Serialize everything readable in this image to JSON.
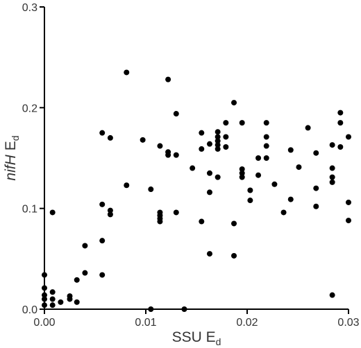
{
  "chart_data": {
    "type": "scatter",
    "xlabel": {
      "text": "SSU E",
      "subscript": "d"
    },
    "ylabel": {
      "italic": "nifH",
      "text": "E",
      "subscript": "d"
    },
    "xlim": [
      0,
      0.03
    ],
    "ylim": [
      0,
      0.3
    ],
    "xticks": [
      {
        "value": 0,
        "label": "0.00"
      },
      0.01,
      0.02,
      0.03
    ],
    "yticks": [
      {
        "value": 0,
        "label": "0.0"
      },
      0.1,
      0.2,
      0.3
    ],
    "color": "#000000",
    "x": [
      0,
      0,
      0,
      0,
      0,
      0.0008,
      0.0008,
      0.0008,
      0.0008,
      0.0016,
      0.0025,
      0.0025,
      0.0032,
      0.0032,
      0.004,
      0.004,
      0.0057,
      0.0057,
      0.0057,
      0.0057,
      0.0065,
      0.0065,
      0.0065,
      0.0081,
      0.0081,
      0.0097,
      0.0105,
      0.0105,
      0.0114,
      0.0114,
      0.0114,
      0.0114,
      0.0114,
      0.0122,
      0.0122,
      0.0122,
      0.013,
      0.013,
      0.013,
      0.0138,
      0.0146,
      0.0155,
      0.0155,
      0.0155,
      0.0163,
      0.0163,
      0.0163,
      0.0163,
      0.0171,
      0.0171,
      0.0171,
      0.0171,
      0.0171,
      0.0171,
      0.0179,
      0.0179,
      0.0179,
      0.0187,
      0.0187,
      0.0187,
      0.0195,
      0.0195,
      0.0195,
      0.0195,
      0.0203,
      0.0203,
      0.0211,
      0.0211,
      0.0219,
      0.0219,
      0.0219,
      0.0219,
      0.0227,
      0.0236,
      0.0243,
      0.0243,
      0.0251,
      0.026,
      0.0268,
      0.0268,
      0.0268,
      0.0284,
      0.0284,
      0.0284,
      0.0284,
      0.0284,
      0.0292,
      0.0292,
      0.0292,
      0.03,
      0.03,
      0.03
    ],
    "values": [
      0.034,
      0.021,
      0.014,
      0.01,
      0.004,
      0.096,
      0.017,
      0.01,
      0.004,
      0.007,
      0.013,
      0.01,
      0.029,
      0.007,
      0.036,
      0.063,
      0.175,
      0.104,
      0.068,
      0.034,
      0.17,
      0.098,
      0.094,
      0.235,
      0.123,
      0.168,
      0.119,
      0,
      0.162,
      0.096,
      0.093,
      0.09,
      0.087,
      0.228,
      0.156,
      0.153,
      0.194,
      0.153,
      0.096,
      0,
      0.14,
      0.175,
      0.087,
      0.159,
      0.164,
      0.135,
      0.116,
      0.055,
      0.176,
      0.171,
      0.167,
      0.163,
      0.159,
      0.131,
      0.185,
      0.171,
      0.161,
      0.205,
      0.085,
      0.053,
      0.185,
      0.139,
      0.135,
      0.131,
      0.118,
      0.108,
      0.133,
      0.15,
      0.185,
      0.171,
      0.162,
      0.15,
      0.124,
      0.096,
      0.158,
      0.109,
      0.141,
      0.18,
      0.155,
      0.12,
      0.102,
      0.163,
      0.14,
      0.131,
      0.126,
      0.014,
      0.195,
      0.185,
      0.161,
      0.171,
      0.106,
      0.088
    ]
  }
}
